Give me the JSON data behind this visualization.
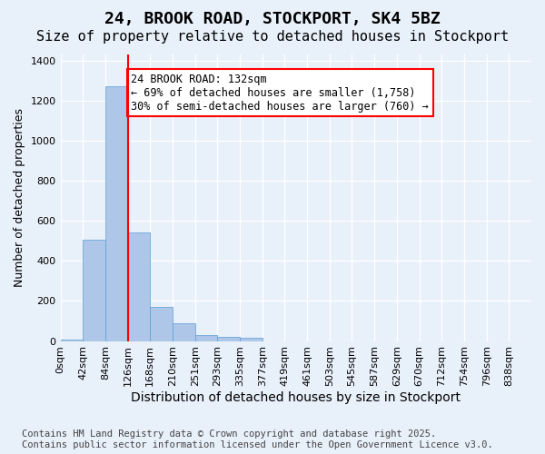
{
  "title": "24, BROOK ROAD, STOCKPORT, SK4 5BZ",
  "subtitle": "Size of property relative to detached houses in Stockport",
  "xlabel": "Distribution of detached houses by size in Stockport",
  "ylabel": "Number of detached properties",
  "bar_color": "#aec6e8",
  "bar_edge_color": "#5a9fd4",
  "background_color": "#e8f0fa",
  "grid_color": "#ffffff",
  "bin_labels": [
    "0sqm",
    "42sqm",
    "84sqm",
    "126sqm",
    "168sqm",
    "210sqm",
    "251sqm",
    "293sqm",
    "335sqm",
    "377sqm",
    "419sqm",
    "461sqm",
    "503sqm",
    "545sqm",
    "587sqm",
    "629sqm",
    "670sqm",
    "712sqm",
    "754sqm",
    "796sqm",
    "838sqm"
  ],
  "bar_values": [
    5,
    505,
    1270,
    540,
    170,
    90,
    30,
    20,
    15,
    0,
    0,
    0,
    0,
    0,
    0,
    0,
    0,
    0,
    0,
    0,
    0
  ],
  "ylim": [
    0,
    1430
  ],
  "yticks": [
    0,
    200,
    400,
    600,
    800,
    1000,
    1200,
    1400
  ],
  "annotation_text": "24 BROOK ROAD: 132sqm\n← 69% of detached houses are smaller (1,758)\n30% of semi-detached houses are larger (760) →",
  "red_line_x": 3,
  "footnote": "Contains HM Land Registry data © Crown copyright and database right 2025.\nContains public sector information licensed under the Open Government Licence v3.0.",
  "title_fontsize": 13,
  "subtitle_fontsize": 11,
  "xlabel_fontsize": 10,
  "ylabel_fontsize": 9,
  "tick_fontsize": 8,
  "annotation_fontsize": 8.5,
  "footnote_fontsize": 7.5
}
